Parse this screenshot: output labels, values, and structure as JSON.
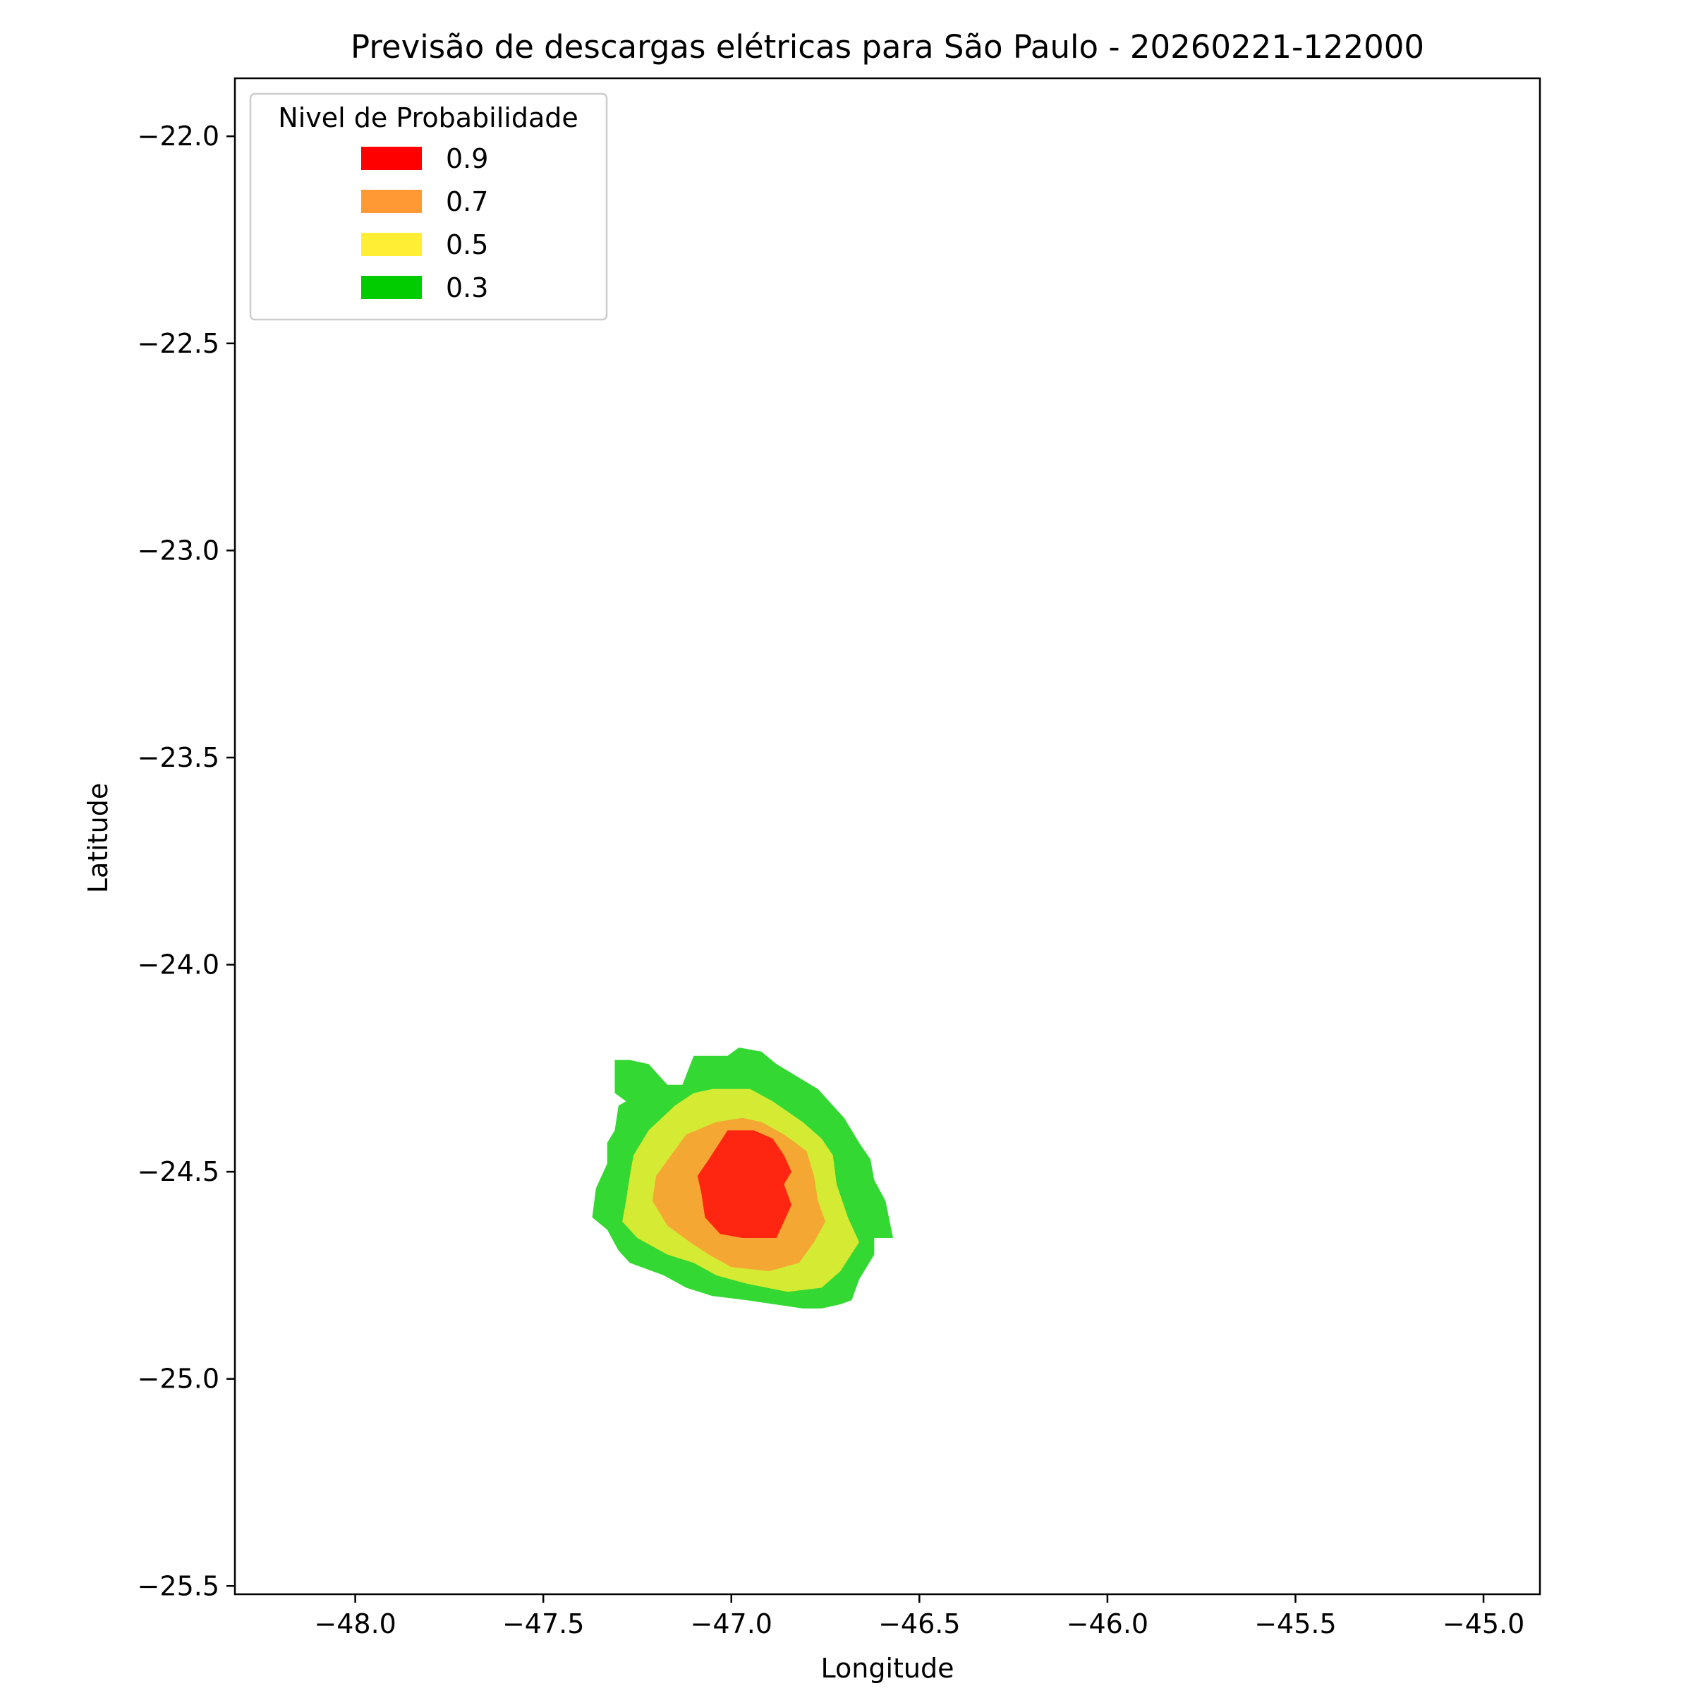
{
  "chart_data": {
    "type": "contour",
    "title": "Previsão de descargas elétricas para São Paulo - 20260221-122000",
    "xlabel": "Longitude",
    "ylabel": "Latitude",
    "xlim": [
      -48.32,
      -44.85
    ],
    "ylim": [
      -25.52,
      -21.86
    ],
    "xticks": [
      -48.0,
      -47.5,
      -47.0,
      -46.5,
      -46.0,
      -45.5,
      -45.0
    ],
    "yticks": [
      -22.0,
      -22.5,
      -23.0,
      -23.5,
      -24.0,
      -24.5,
      -25.0,
      -25.5
    ],
    "xtick_labels": [
      "−48.0",
      "−47.5",
      "−47.0",
      "−46.5",
      "−46.0",
      "−45.5",
      "−45.0"
    ],
    "ytick_labels": [
      "−22.0",
      "−22.5",
      "−23.0",
      "−23.5",
      "−24.0",
      "−24.5",
      "−25.0",
      "−25.5"
    ],
    "grid": false,
    "legend": {
      "title": "Nivel de Probabilidade",
      "placement": "top-left",
      "entries": [
        {
          "label": "0.9",
          "color": "#ff0000"
        },
        {
          "label": "0.7",
          "color": "#ff9933"
        },
        {
          "label": "0.5",
          "color": "#ffee33"
        },
        {
          "label": "0.3",
          "color": "#00cc00"
        }
      ]
    },
    "regions": [
      {
        "level": "0.3",
        "color": "#33d833",
        "points": [
          [
            -47.31,
            -24.23
          ],
          [
            -47.27,
            -24.23
          ],
          [
            -47.22,
            -24.24
          ],
          [
            -47.17,
            -24.29
          ],
          [
            -47.13,
            -24.29
          ],
          [
            -47.1,
            -24.22
          ],
          [
            -47.01,
            -24.22
          ],
          [
            -46.98,
            -24.2
          ],
          [
            -46.92,
            -24.21
          ],
          [
            -46.88,
            -24.24
          ],
          [
            -46.77,
            -24.3
          ],
          [
            -46.7,
            -24.37
          ],
          [
            -46.68,
            -24.4
          ],
          [
            -46.66,
            -24.43
          ],
          [
            -46.63,
            -24.47
          ],
          [
            -46.62,
            -24.52
          ],
          [
            -46.59,
            -24.57
          ],
          [
            -46.57,
            -24.66
          ],
          [
            -46.62,
            -24.66
          ],
          [
            -46.62,
            -24.7
          ],
          [
            -46.66,
            -24.76
          ],
          [
            -46.68,
            -24.81
          ],
          [
            -46.71,
            -24.82
          ],
          [
            -46.76,
            -24.83
          ],
          [
            -46.81,
            -24.83
          ],
          [
            -46.96,
            -24.81
          ],
          [
            -47.05,
            -24.8
          ],
          [
            -47.12,
            -24.78
          ],
          [
            -47.18,
            -24.75
          ],
          [
            -47.27,
            -24.72
          ],
          [
            -47.3,
            -24.69
          ],
          [
            -47.33,
            -24.64
          ],
          [
            -47.37,
            -24.61
          ],
          [
            -47.36,
            -24.54
          ],
          [
            -47.33,
            -24.48
          ],
          [
            -47.33,
            -24.43
          ],
          [
            -47.31,
            -24.4
          ],
          [
            -47.3,
            -24.34
          ],
          [
            -47.28,
            -24.33
          ],
          [
            -47.31,
            -24.31
          ]
        ]
      },
      {
        "level": "0.5",
        "color": "#d4ea33",
        "points": [
          [
            -47.1,
            -24.31
          ],
          [
            -47.05,
            -24.3
          ],
          [
            -46.95,
            -24.3
          ],
          [
            -46.89,
            -24.33
          ],
          [
            -46.81,
            -24.38
          ],
          [
            -46.76,
            -24.42
          ],
          [
            -46.73,
            -24.46
          ],
          [
            -46.72,
            -24.53
          ],
          [
            -46.69,
            -24.61
          ],
          [
            -46.66,
            -24.67
          ],
          [
            -46.71,
            -24.74
          ],
          [
            -46.76,
            -24.78
          ],
          [
            -46.85,
            -24.79
          ],
          [
            -46.96,
            -24.77
          ],
          [
            -47.04,
            -24.75
          ],
          [
            -47.1,
            -24.72
          ],
          [
            -47.17,
            -24.7
          ],
          [
            -47.25,
            -24.66
          ],
          [
            -47.29,
            -24.62
          ],
          [
            -47.28,
            -24.57
          ],
          [
            -47.27,
            -24.51
          ],
          [
            -47.26,
            -24.46
          ],
          [
            -47.22,
            -24.4
          ],
          [
            -47.15,
            -24.34
          ]
        ]
      },
      {
        "level": "0.7",
        "color": "#f5a733",
        "points": [
          [
            -47.04,
            -24.38
          ],
          [
            -46.97,
            -24.37
          ],
          [
            -46.92,
            -24.38
          ],
          [
            -46.86,
            -24.41
          ],
          [
            -46.8,
            -24.45
          ],
          [
            -46.78,
            -24.51
          ],
          [
            -46.77,
            -24.57
          ],
          [
            -46.75,
            -24.62
          ],
          [
            -46.78,
            -24.67
          ],
          [
            -46.82,
            -24.72
          ],
          [
            -46.9,
            -24.74
          ],
          [
            -47.0,
            -24.73
          ],
          [
            -47.06,
            -24.7
          ],
          [
            -47.11,
            -24.67
          ],
          [
            -47.17,
            -24.63
          ],
          [
            -47.21,
            -24.57
          ],
          [
            -47.2,
            -24.51
          ],
          [
            -47.16,
            -24.46
          ],
          [
            -47.12,
            -24.41
          ]
        ]
      },
      {
        "level": "0.9",
        "color": "#fe2610",
        "points": [
          [
            -47.01,
            -24.4
          ],
          [
            -46.94,
            -24.4
          ],
          [
            -46.89,
            -24.42
          ],
          [
            -46.86,
            -24.46
          ],
          [
            -46.84,
            -24.5
          ],
          [
            -46.86,
            -24.53
          ],
          [
            -46.84,
            -24.58
          ],
          [
            -46.86,
            -24.62
          ],
          [
            -46.88,
            -24.66
          ],
          [
            -46.97,
            -24.66
          ],
          [
            -47.03,
            -24.65
          ],
          [
            -47.07,
            -24.61
          ],
          [
            -47.08,
            -24.55
          ],
          [
            -47.09,
            -24.51
          ],
          [
            -47.06,
            -24.47
          ]
        ]
      }
    ]
  }
}
